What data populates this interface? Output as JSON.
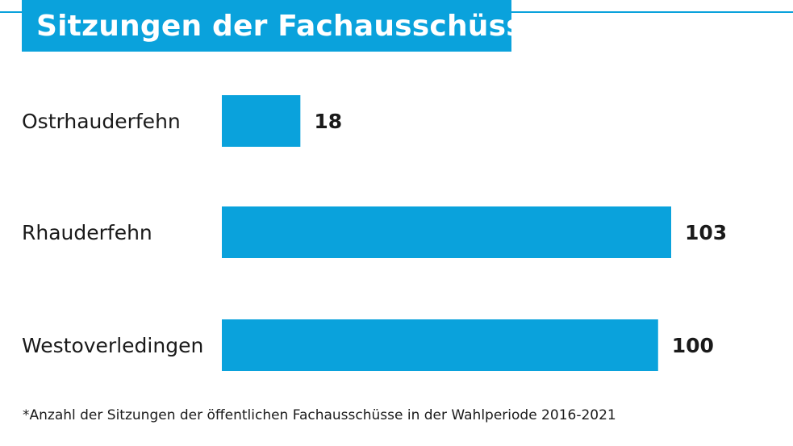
{
  "title": "Sitzungen der Fachausschüsse",
  "footnote": "*Anzahl der Sitzungen der öffentlichen Fachausschüsse in der Wahlperiode 2016-2021",
  "colors": {
    "accent": "#0aa2dc",
    "text": "#1a1a1a"
  },
  "chart_data": {
    "type": "bar",
    "orientation": "horizontal",
    "categories": [
      "Ostrhauderfehn",
      "Rhauderfehn",
      "Westoverledingen"
    ],
    "values": [
      18,
      103,
      100
    ],
    "title": "Sitzungen der Fachausschüsse",
    "grid": false,
    "legend": "none"
  }
}
